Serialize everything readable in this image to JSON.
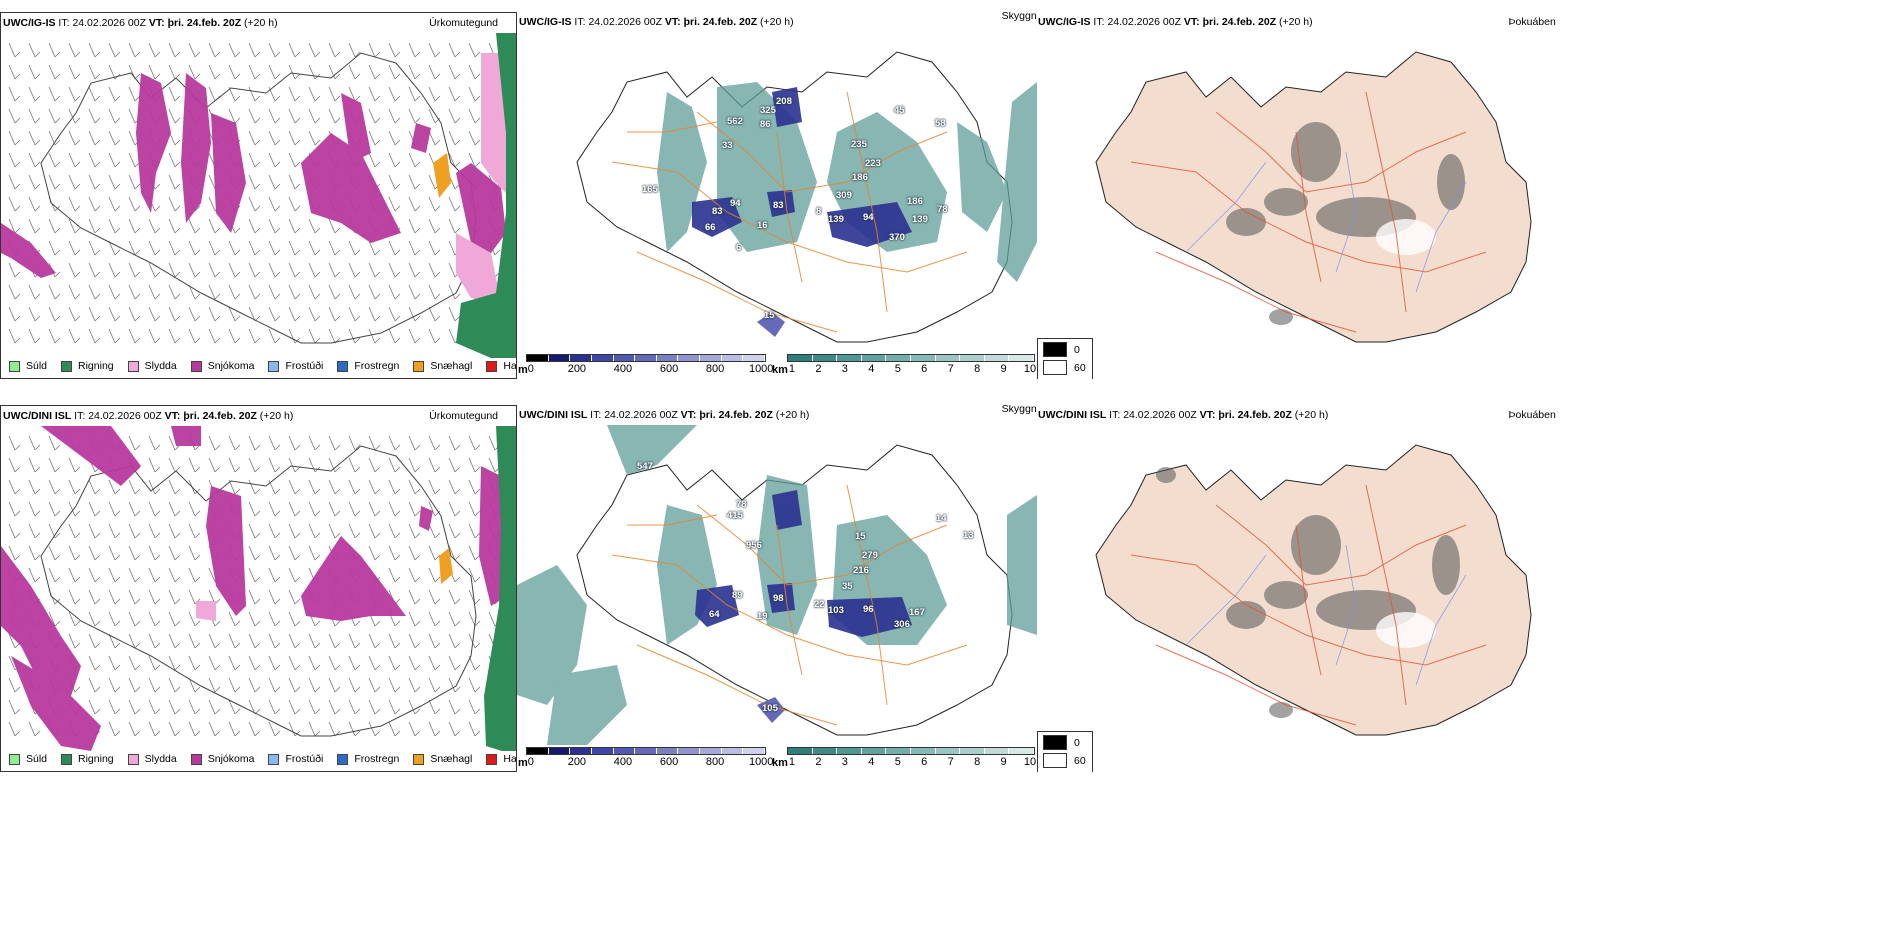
{
  "rows": [
    {
      "model": "UWC/IG-IS",
      "init_label": "IT:",
      "init": "24.02.2026 00Z",
      "valid_label": "VT:",
      "valid": "þri. 24.feb. 20Z",
      "lead": "(+20 h)",
      "elev_labels": [
        "562",
        "325",
        "208",
        "86",
        "33",
        "235",
        "223",
        "186",
        "165",
        "309",
        "83",
        "94",
        "83",
        "66",
        "139",
        "94",
        "186",
        "139",
        "370",
        "78",
        "45",
        "58",
        "16",
        "8",
        "6",
        "15"
      ],
      "precip_label": "Úrkomutegund",
      "cloud_label": "Skyggni",
      "fog_label": "Þokuábendi"
    },
    {
      "model": "UWC/DINI ISL",
      "init_label": "IT:",
      "init": "24.02.2026 00Z",
      "valid_label": "VT:",
      "valid": "þri. 24.feb. 20Z",
      "lead": "(+20 h)",
      "elev_labels": [
        "547",
        "78",
        "415",
        "956",
        "89",
        "98",
        "64",
        "279",
        "216",
        "103",
        "96",
        "167",
        "306",
        "105",
        "15",
        "19",
        "22",
        "13",
        "35",
        "14"
      ],
      "precip_label": "Úrkomutegund",
      "cloud_label": "Skyggni",
      "fog_label": "Þokuábendi"
    }
  ],
  "precip_legend": [
    {
      "label": "Súld",
      "color": "#90ee90"
    },
    {
      "label": "Rigning",
      "color": "#2e8b57"
    },
    {
      "label": "Slydda",
      "color": "#f0a8d8"
    },
    {
      "label": "Snjókoma",
      "color": "#b8399e"
    },
    {
      "label": "Frostúði",
      "color": "#87b8f0"
    },
    {
      "label": "Frostregn",
      "color": "#2d6bc4"
    },
    {
      "label": "Snæhagl",
      "color": "#f0a020"
    },
    {
      "label": "Haglél",
      "color": "#e01818"
    }
  ],
  "ceiling_bar": {
    "unit": "m",
    "ticks": [
      "0",
      "200",
      "400",
      "600",
      "800",
      "1000"
    ],
    "colors": [
      "#000000",
      "#151a6e",
      "#2a3190",
      "#3e46a6",
      "#5158b0",
      "#6569ba",
      "#7b7fc4",
      "#9093ce",
      "#a6a8d8",
      "#bbbde2",
      "#d0d1ec"
    ]
  },
  "visibility_bar": {
    "unit": "km",
    "ticks": [
      "1",
      "2",
      "3",
      "4",
      "5",
      "6",
      "7",
      "8",
      "9",
      "10"
    ],
    "colors": [
      "#2f7e7a",
      "#3f8a86",
      "#509692",
      "#62a29e",
      "#74aeaa",
      "#86bab6",
      "#99c6c2",
      "#adcfcc",
      "#c2dbd9",
      "#d8e8e6"
    ]
  },
  "fog_key": {
    "high": "0",
    "low": "60"
  }
}
